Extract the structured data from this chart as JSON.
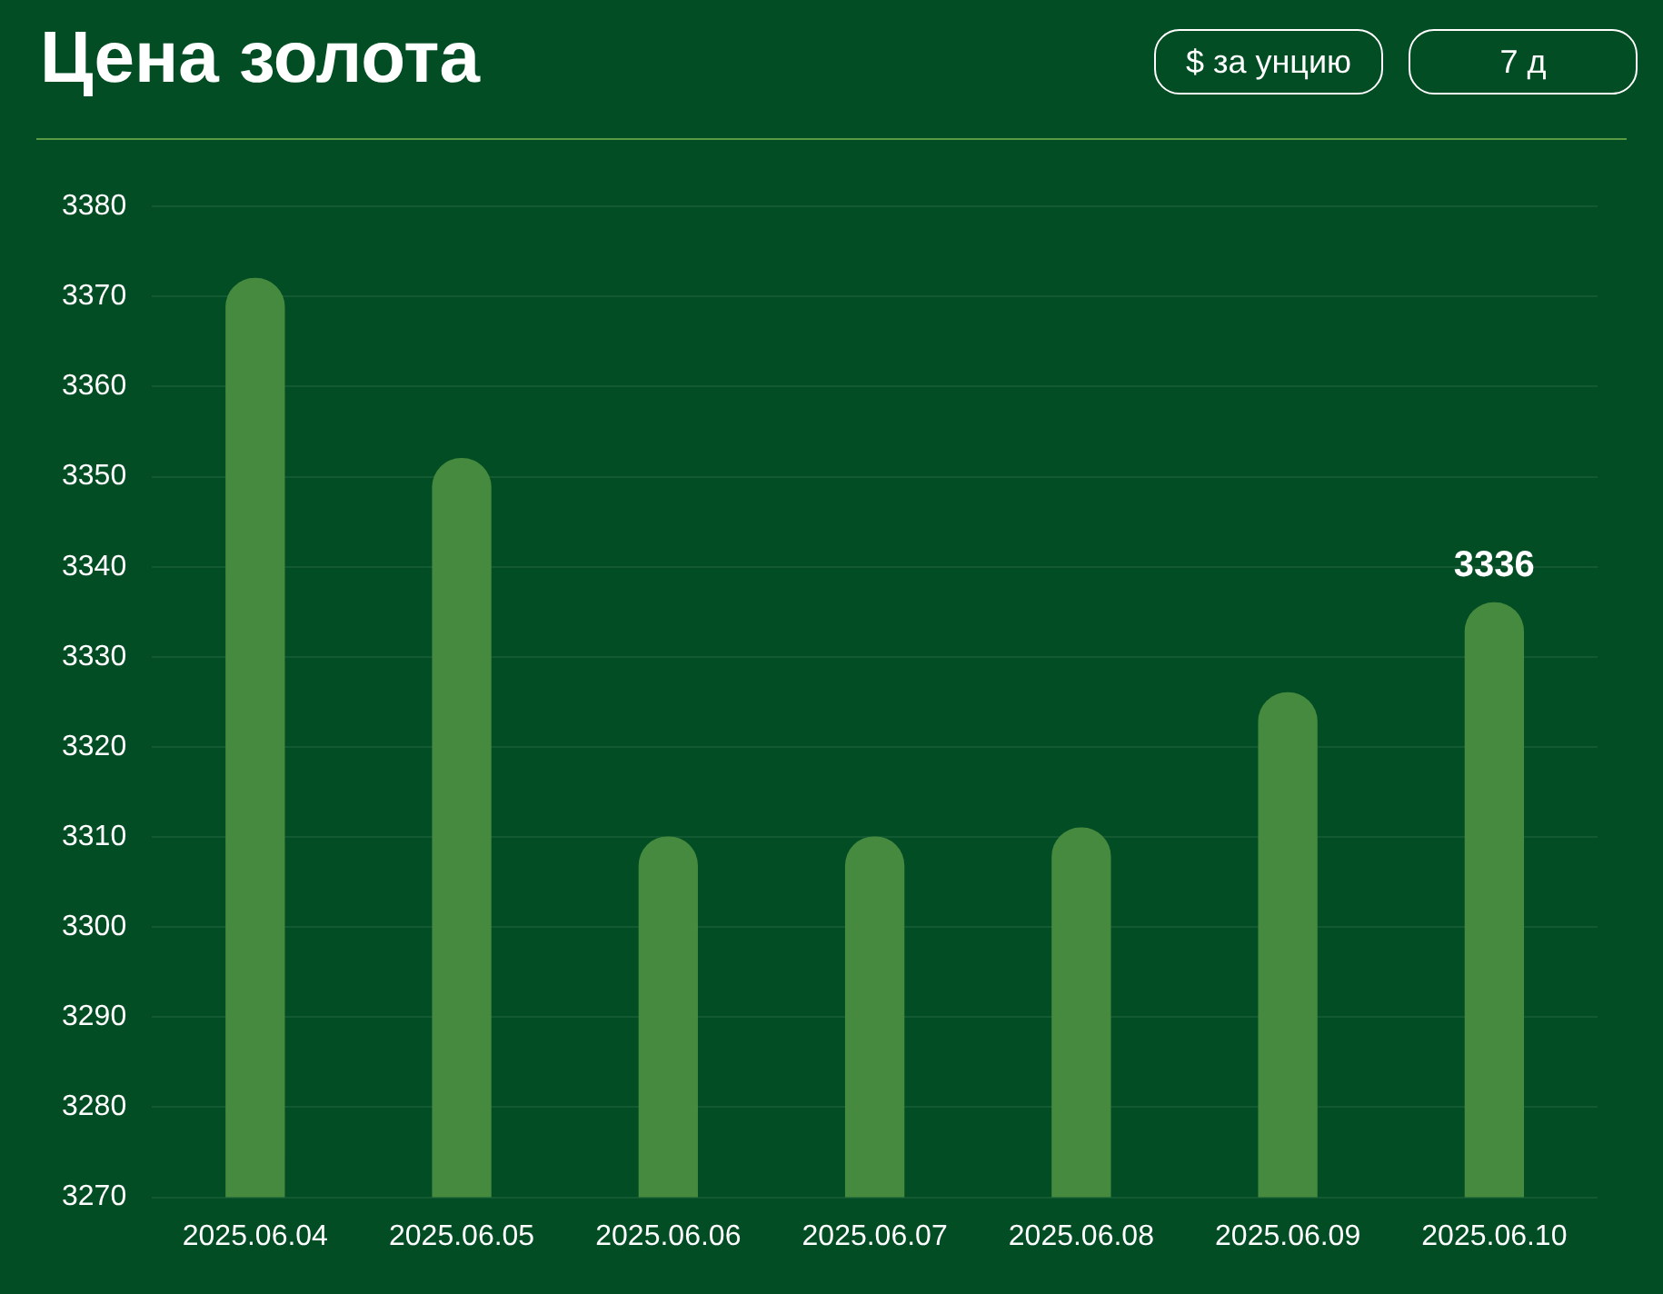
{
  "chart_data": {
    "type": "bar",
    "title": "Цена золота",
    "annotations": [
      "$ за унцию",
      "7 д"
    ],
    "categories": [
      "2025.06.04",
      "2025.06.05",
      "2025.06.06",
      "2025.06.07",
      "2025.06.08",
      "2025.06.09",
      "2025.06.10"
    ],
    "values": [
      3372,
      3352,
      3310,
      3310,
      3311,
      3326,
      3336
    ],
    "value_labels": [
      null,
      null,
      null,
      null,
      null,
      null,
      "3336"
    ],
    "color": "#458a3f",
    "ylim": [
      3270,
      3380
    ],
    "yticks": [
      3270,
      3280,
      3290,
      3300,
      3310,
      3320,
      3330,
      3340,
      3350,
      3360,
      3370,
      3380
    ],
    "grid": "y",
    "legend": false
  }
}
